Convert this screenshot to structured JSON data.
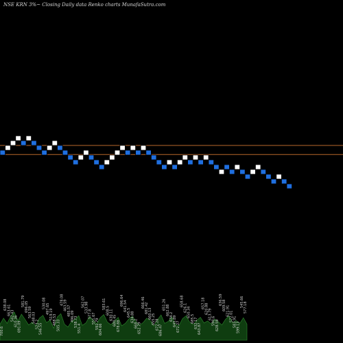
{
  "title": "NSE KRN  3%~   Closing Daily data  Renko  charts MunafaSutra.com",
  "colors": {
    "background": "#000000",
    "up_brick": "#ffffff",
    "down_brick": "#1f6fe0",
    "brick_border": "#000000",
    "reference_line": "#b8672b",
    "volume_fill": "#0f3d10",
    "volume_stroke": "#2e8a2e",
    "label": "#cfcfcf"
  },
  "chart_data": {
    "type": "renko",
    "brick_size_pct": 3,
    "bricks": [
      {
        "dir": "down",
        "level": 0
      },
      {
        "dir": "up",
        "level": 1
      },
      {
        "dir": "up",
        "level": 2
      },
      {
        "dir": "up",
        "level": 3
      },
      {
        "dir": "down",
        "level": 2
      },
      {
        "dir": "up",
        "level": 3
      },
      {
        "dir": "down",
        "level": 2
      },
      {
        "dir": "down",
        "level": 1
      },
      {
        "dir": "down",
        "level": 0
      },
      {
        "dir": "up",
        "level": 1
      },
      {
        "dir": "up",
        "level": 2
      },
      {
        "dir": "down",
        "level": 1
      },
      {
        "dir": "down",
        "level": 0
      },
      {
        "dir": "down",
        "level": -1
      },
      {
        "dir": "down",
        "level": -2
      },
      {
        "dir": "up",
        "level": -1
      },
      {
        "dir": "up",
        "level": 0
      },
      {
        "dir": "down",
        "level": -1
      },
      {
        "dir": "down",
        "level": -2
      },
      {
        "dir": "down",
        "level": -3
      },
      {
        "dir": "up",
        "level": -2
      },
      {
        "dir": "up",
        "level": -1
      },
      {
        "dir": "up",
        "level": 0
      },
      {
        "dir": "up",
        "level": 1
      },
      {
        "dir": "down",
        "level": 0
      },
      {
        "dir": "up",
        "level": 1
      },
      {
        "dir": "down",
        "level": 0
      },
      {
        "dir": "up",
        "level": 1
      },
      {
        "dir": "down",
        "level": 0
      },
      {
        "dir": "down",
        "level": -1
      },
      {
        "dir": "down",
        "level": -2
      },
      {
        "dir": "down",
        "level": -3
      },
      {
        "dir": "up",
        "level": -2
      },
      {
        "dir": "down",
        "level": -3
      },
      {
        "dir": "up",
        "level": -2
      },
      {
        "dir": "up",
        "level": -1
      },
      {
        "dir": "down",
        "level": -2
      },
      {
        "dir": "up",
        "level": -1
      },
      {
        "dir": "down",
        "level": -2
      },
      {
        "dir": "up",
        "level": -1
      },
      {
        "dir": "down",
        "level": -2
      },
      {
        "dir": "down",
        "level": -3
      },
      {
        "dir": "up",
        "level": -4
      },
      {
        "dir": "down",
        "level": -3
      },
      {
        "dir": "down",
        "level": -4
      },
      {
        "dir": "up",
        "level": -3
      },
      {
        "dir": "down",
        "level": -4
      },
      {
        "dir": "down",
        "level": -5
      },
      {
        "dir": "up",
        "level": -4
      },
      {
        "dir": "up",
        "level": -3
      },
      {
        "dir": "down",
        "level": -4
      },
      {
        "dir": "down",
        "level": -5
      },
      {
        "dir": "down",
        "level": -6
      },
      {
        "dir": "up",
        "level": -5
      },
      {
        "dir": "down",
        "level": -6
      },
      {
        "dir": "down",
        "level": -7
      }
    ],
    "reference_lines_level": [
      1.5,
      -0.4
    ],
    "volume_labels": [
      "700.6",
      "638.08",
      "663.61",
      "542.43",
      "610.36",
      "691.09",
      "581.79",
      "696.05",
      "563.59",
      "548.03",
      "523.2",
      "546.55",
      "530.08",
      "497.65",
      "519.19",
      "488.53",
      "505.33",
      "478.08",
      "463.59",
      "485.57",
      "496.09",
      "538.73",
      "551.4",
      "562.07",
      "533.98",
      "577.8",
      "551.67",
      "592.79",
      "604.66",
      "583.61",
      "608.5",
      "630.11",
      "680.45",
      "678.88",
      "696.64",
      "641.54",
      "645.5",
      "634.88",
      "668.2",
      "652.79",
      "666.46",
      "681.42",
      "660.13",
      "655.25",
      "672.28",
      "686.47",
      "651.26",
      "662.88",
      "634.2",
      "645.89",
      "672.27",
      "658.68",
      "626.1",
      "650.34",
      "685.5",
      "632.17",
      "643.87",
      "657.18",
      "620.88",
      "613.79",
      "590.6",
      "628.59",
      "636.59",
      "609.58",
      "621.91",
      "572.01",
      "583.91",
      "599.13",
      "545.66",
      "577.18"
    ],
    "volume_values": [
      40,
      55,
      42,
      60,
      70,
      48,
      65,
      52,
      38,
      45,
      35,
      55,
      62,
      44,
      50,
      30,
      58,
      66,
      40,
      33,
      47,
      52,
      61,
      37,
      43,
      59,
      50,
      41,
      56,
      64,
      45,
      39,
      48,
      57,
      36,
      42,
      53,
      60,
      46,
      38,
      44,
      55,
      49,
      35,
      51,
      63,
      42,
      47,
      58,
      40,
      36,
      54,
      61,
      45,
      39,
      50,
      57,
      43,
      48,
      41,
      53,
      46,
      38,
      52,
      60,
      44,
      49,
      42,
      56,
      40
    ]
  }
}
